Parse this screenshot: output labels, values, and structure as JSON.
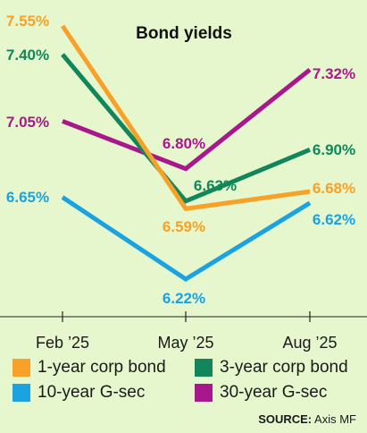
{
  "chart_data": {
    "type": "line",
    "title": "Bond yields",
    "categories": [
      "Feb ’25",
      "May ’25",
      "Aug ’25"
    ],
    "ylim": [
      6.1,
      7.6
    ],
    "series": [
      {
        "name": "1-year corp bond",
        "color": "#f7a128",
        "values": [
          7.55,
          6.59,
          6.68
        ],
        "labels": [
          "7.55%",
          "6.59%",
          "6.68%"
        ]
      },
      {
        "name": "3-year corp bond",
        "color": "#12865a",
        "values": [
          7.4,
          6.63,
          6.9
        ],
        "labels": [
          "7.40%",
          "6.63%",
          "6.90%"
        ]
      },
      {
        "name": "10-year G-sec",
        "color": "#1aa3e0",
        "values": [
          6.65,
          6.22,
          6.62
        ],
        "labels": [
          "6.65%",
          "6.22%",
          "6.62%"
        ]
      },
      {
        "name": "30-year G-sec",
        "color": "#a8188c",
        "values": [
          7.05,
          6.8,
          7.32
        ],
        "labels": [
          "7.05%",
          "6.80%",
          "7.32%"
        ]
      }
    ],
    "source_label": "SOURCE:",
    "source_value": "Axis MF"
  }
}
